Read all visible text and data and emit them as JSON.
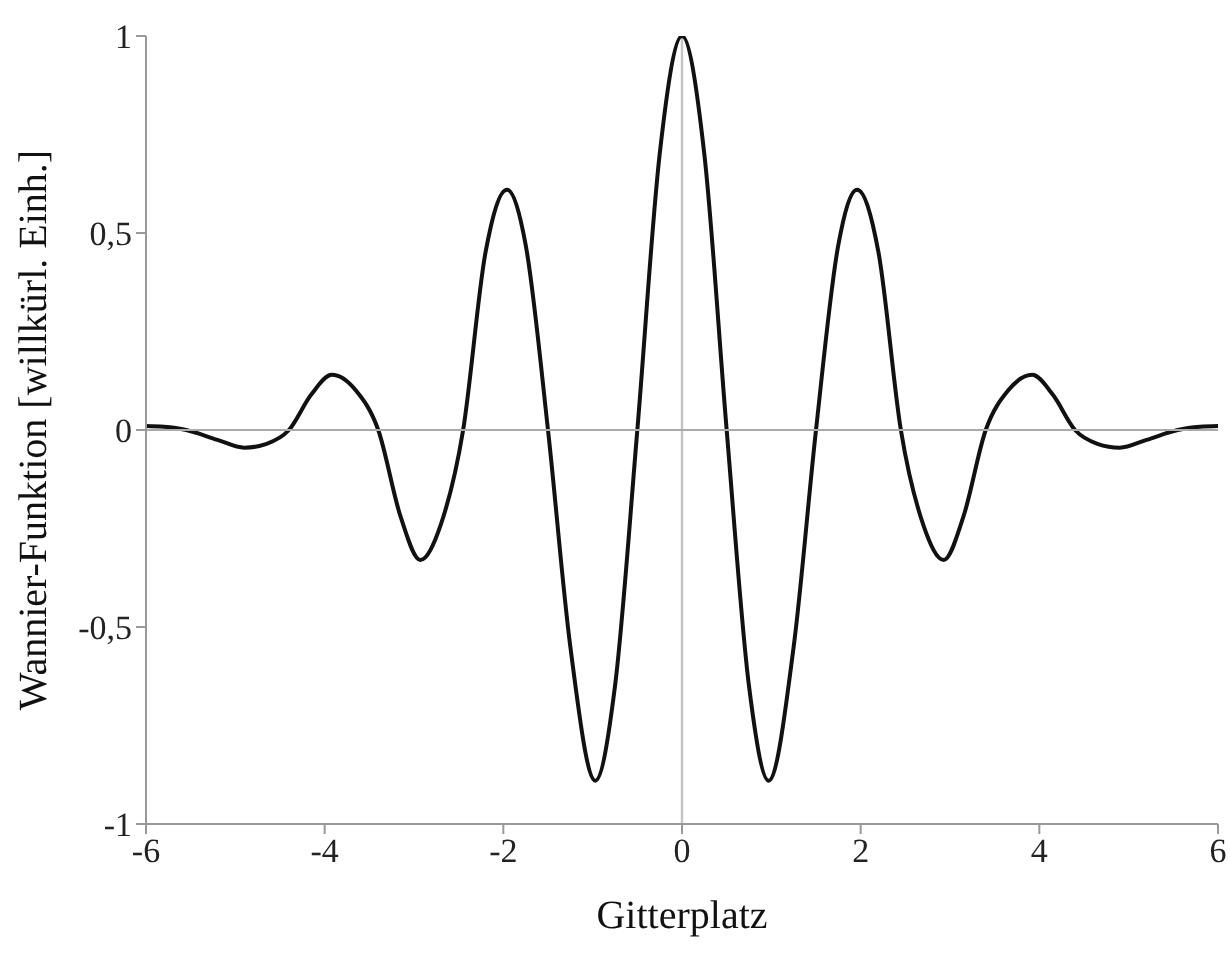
{
  "chart_data": {
    "type": "line",
    "xlabel": "Gitterplatz",
    "ylabel": "Wannier-Funktion  [willkürl. Einh.]",
    "x": [
      -6,
      -5.8,
      -5.55,
      -5.2,
      -4.9,
      -4.65,
      -4.4,
      -4.15,
      -3.92,
      -3.65,
      -3.4,
      -3.15,
      -2.93,
      -2.7,
      -2.45,
      -2.2,
      -1.96,
      -1.75,
      -1.5,
      -1.25,
      -0.97,
      -0.75,
      -0.5,
      -0.25,
      0,
      0.25,
      0.5,
      0.75,
      0.97,
      1.25,
      1.5,
      1.75,
      1.96,
      2.2,
      2.45,
      2.7,
      2.93,
      3.15,
      3.4,
      3.65,
      3.92,
      4.15,
      4.4,
      4.65,
      4.9,
      5.2,
      5.55,
      5.8,
      6
    ],
    "series": [
      {
        "color": "#111111",
        "values": [
          0.01,
          0.008,
          0,
          -0.025,
          -0.045,
          -0.035,
          0,
          0.09,
          0.14,
          0.1,
          0,
          -0.22,
          -0.33,
          -0.24,
          0,
          0.45,
          0.61,
          0.47,
          0,
          -0.55,
          -0.89,
          -0.65,
          0,
          0.7,
          1,
          0.7,
          0,
          -0.65,
          -0.89,
          -0.55,
          0,
          0.47,
          0.61,
          0.45,
          0,
          -0.24,
          -0.33,
          -0.22,
          0,
          0.1,
          0.14,
          0.09,
          0,
          -0.035,
          -0.045,
          -0.025,
          0,
          0.008,
          0.01
        ]
      }
    ],
    "xlim": [
      -6,
      6
    ],
    "xticks": [
      -6,
      -4,
      -2,
      0,
      2,
      4,
      6
    ],
    "ylim": [
      -1,
      1
    ],
    "yticks": [
      {
        "value": -1,
        "label": "-1"
      },
      {
        "value": -0.5,
        "label": "-0,5"
      },
      0,
      {
        "value": 0.5,
        "label": "0,5"
      },
      1
    ],
    "ref_lines": [
      {
        "axis": "x",
        "value": 0,
        "color": "#c4c4c4"
      },
      {
        "axis": "y",
        "value": 0,
        "color": "#aaaaaa"
      }
    ],
    "marker": "none",
    "line_style": "solid"
  }
}
